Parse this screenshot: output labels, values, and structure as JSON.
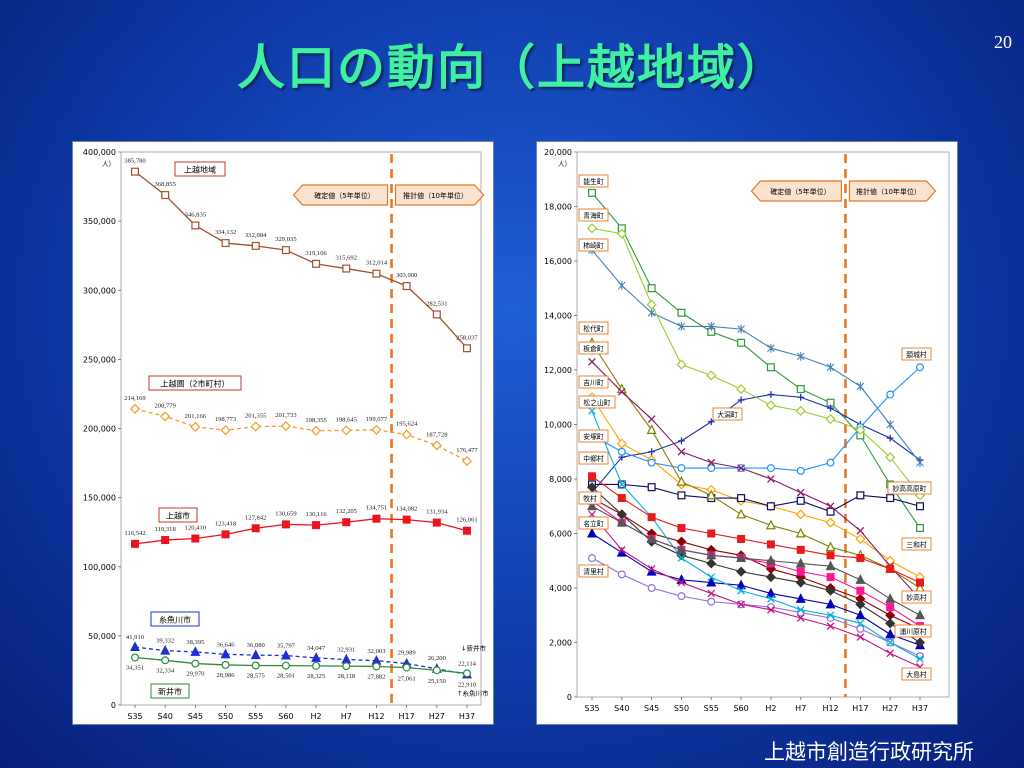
{
  "slide": {
    "title": "人口の動向（上越地域）",
    "page_number": "20",
    "footer": "上越市創造行政研究所"
  },
  "colors": {
    "background": "#0f3aa8",
    "title": "#3ef0a0",
    "divider": "#e87722",
    "arrow_fill": "#fbe3cf",
    "arrow_stroke": "#e87722"
  },
  "chart_data": [
    {
      "type": "line",
      "categories": [
        "S35",
        "S40",
        "S45",
        "S50",
        "S55",
        "S60",
        "H2",
        "H7",
        "H12",
        "H17",
        "H27",
        "H37"
      ],
      "ylim": [
        0,
        400000
      ],
      "yticks": [
        "0",
        "50,000",
        "100,000",
        "150,000",
        "200,000",
        "250,000",
        "300,000",
        "350,000",
        "400,000"
      ],
      "unit": "人",
      "divider_after": "H12",
      "annotations": {
        "actual": "確定値（5年単位）",
        "forecast": "推計値（10年単位）"
      },
      "series": [
        {
          "name": "上越地域",
          "color": "#a0522d",
          "marker": "square-open",
          "dash": false,
          "values": [
            385780,
            368855,
            346835,
            334132,
            332084,
            329035,
            319106,
            315692,
            312014,
            303000,
            282531,
            258037
          ],
          "labels": [
            "385,780",
            "368,855",
            "346,835",
            "334,132",
            "332,084",
            "329,035",
            "319,106",
            "315,692",
            "312,014",
            "303,000",
            "282,531",
            "258,037"
          ]
        },
        {
          "name": "上越圏（2市町村）",
          "color": "#f29a2e",
          "marker": "diamond-open",
          "dash": true,
          "values": [
            214169,
            208779,
            201166,
            198773,
            201355,
            201733,
            198355,
            198645,
            199077,
            195624,
            187728,
            176477
          ],
          "labels": [
            "214,169",
            "208,779",
            "201,166",
            "198,773",
            "201,355",
            "201,733",
            "198,355",
            "198,645",
            "199,077",
            "195,624",
            "187,728",
            "176,477"
          ]
        },
        {
          "name": "上越市",
          "color": "#e8141e",
          "marker": "square-filled",
          "dash": false,
          "values": [
            116542,
            119318,
            120410,
            123418,
            127842,
            130659,
            130116,
            132205,
            134751,
            134082,
            131934,
            126061
          ],
          "labels": [
            "116,542",
            "119,318",
            "120,410",
            "123,418",
            "127,842",
            "130,659",
            "130,116",
            "132,205",
            "134,751",
            "134,082",
            "131,934",
            "126,061"
          ]
        },
        {
          "name": "糸魚川市",
          "color": "#1a2fd4",
          "marker": "triangle-filled",
          "dash": true,
          "values": [
            41910,
            39332,
            38395,
            36646,
            36080,
            35797,
            34047,
            32931,
            32003,
            29989,
            26200,
            22114
          ],
          "labels": [
            "41,910",
            "39,332",
            "38,395",
            "36,646",
            "36,080",
            "35,797",
            "34,047",
            "32,931",
            "32,003",
            "29,989",
            "26,200",
            "22,114"
          ]
        },
        {
          "name": "新井市",
          "color": "#2e8b3a",
          "marker": "circle-open",
          "dash": false,
          "values": [
            34351,
            32334,
            29970,
            28986,
            28575,
            28501,
            28325,
            28118,
            27882,
            27061,
            25150,
            22910
          ],
          "labels": [
            "34,351",
            "32,334",
            "29,970",
            "28,986",
            "28,575",
            "28,501",
            "28,325",
            "28,118",
            "27,882",
            "27,061",
            "25,150",
            "22,910"
          ]
        }
      ],
      "end_notes": {
        "arai": "↓新井市",
        "itoigawa": "↑糸魚川市"
      }
    },
    {
      "type": "line",
      "categories": [
        "S35",
        "S40",
        "S45",
        "S50",
        "S55",
        "S60",
        "H2",
        "H7",
        "H12",
        "H17",
        "H27",
        "H37"
      ],
      "ylim": [
        0,
        20000
      ],
      "yticks": [
        "0",
        "2,000",
        "4,000",
        "6,000",
        "8,000",
        "10,000",
        "12,000",
        "14,000",
        "16,000",
        "18,000",
        "20,000"
      ],
      "unit": "人",
      "divider_after": "H12",
      "annotations": {
        "actual": "確定値（5年単位）",
        "forecast": "推計値（10年単位）"
      },
      "series": [
        {
          "name": "能生町",
          "color": "#2e9a3a",
          "marker": "square-open",
          "values": [
            18500,
            17200,
            15000,
            14100,
            13400,
            13000,
            12100,
            11300,
            10800,
            9600,
            7800,
            6200
          ]
        },
        {
          "name": "吉川町",
          "color": "#ffa500",
          "marker": "diamond-open",
          "values": [
            11000,
            9300,
            8700,
            7800,
            7600,
            7200,
            7000,
            6700,
            6400,
            5800,
            5000,
            4400
          ]
        },
        {
          "name": "大潟町",
          "color": "#1a2fb0",
          "marker": "plus",
          "values": [
            7500,
            8800,
            9000,
            9400,
            10100,
            10900,
            11100,
            11000,
            10600,
            10000,
            9500,
            8700
          ]
        },
        {
          "name": "頚城村",
          "color": "#1e90ff",
          "marker": "circle-open",
          "values": [
            9600,
            9000,
            8600,
            8400,
            8400,
            8400,
            8400,
            8300,
            8600,
            9900,
            11100,
            12100
          ]
        },
        {
          "name": "牧村",
          "color": "#0a0a60",
          "marker": "square-open",
          "values": [
            7800,
            7800,
            7700,
            7400,
            7300,
            7300,
            7000,
            7200,
            6800,
            7400,
            7300,
            7000
          ]
        },
        {
          "name": "柿崎町",
          "color": "#4682b4",
          "marker": "star",
          "values": [
            16400,
            15100,
            14100,
            13600,
            13600,
            13500,
            12800,
            12500,
            12100,
            11400,
            10000,
            8600
          ]
        },
        {
          "name": "名立町",
          "color": "#0000b8",
          "marker": "triangle-filled",
          "values": [
            6000,
            5300,
            4600,
            4300,
            4200,
            4100,
            3800,
            3600,
            3400,
            3000,
            2300,
            1900
          ]
        },
        {
          "name": "清里村",
          "color": "#9370db",
          "marker": "circle-open",
          "values": [
            5100,
            4500,
            4000,
            3700,
            3500,
            3400,
            3300,
            3100,
            2900,
            2500,
            2000,
            1500
          ]
        },
        {
          "name": "板倉町",
          "color": "#808000",
          "marker": "triangle-open",
          "values": [
            13000,
            11300,
            9800,
            7900,
            7400,
            6700,
            6300,
            6000,
            5500,
            5200,
            4700,
            4000
          ]
        },
        {
          "name": "中郷村",
          "color": "#8b0000",
          "marker": "diamond-filled",
          "values": [
            7300,
            6700,
            6000,
            5700,
            5400,
            5200,
            4700,
            4400,
            4000,
            3600,
            3000,
            2500
          ]
        },
        {
          "name": "浦川原村",
          "color": "#333333",
          "marker": "diamond-filled",
          "values": [
            7700,
            6700,
            5700,
            5200,
            4900,
            4600,
            4400,
            4200,
            3900,
            3400,
            2700,
            2000
          ]
        },
        {
          "name": "大島村",
          "color": "#c71585",
          "marker": "x",
          "values": [
            6700,
            5400,
            4700,
            4200,
            3800,
            3400,
            3200,
            2900,
            2600,
            2200,
            1600,
            1100
          ]
        },
        {
          "name": "安塚町",
          "color": "#00b4d8",
          "marker": "x",
          "values": [
            10500,
            7800,
            6600,
            5100,
            4400,
            3900,
            3600,
            3200,
            3000,
            2700,
            2000,
            1400
          ]
        },
        {
          "name": "松之山町",
          "color": "#9acd32",
          "marker": "diamond-open",
          "values": [
            17200,
            17000,
            14400,
            12200,
            11800,
            11300,
            10700,
            10500,
            10200,
            9800,
            8800,
            7400
          ]
        },
        {
          "name": "松代町",
          "color": "#8b1a6b",
          "marker": "x",
          "values": [
            12300,
            11200,
            10200,
            9000,
            8600,
            8400,
            8000,
            7500,
            7000,
            6100,
            4800,
            3600
          ]
        },
        {
          "name": "三和村",
          "color": "#ff1493",
          "marker": "square-filled",
          "values": [
            7200,
            6400,
            5800,
            5400,
            5200,
            5100,
            4900,
            4600,
            4400,
            3900,
            3300,
            2600
          ]
        },
        {
          "name": "妙高高原町",
          "color": "#e61c1c",
          "marker": "square-filled",
          "values": [
            8100,
            7300,
            6600,
            6200,
            6000,
            5800,
            5600,
            5400,
            5200,
            5100,
            4700,
            4200
          ]
        },
        {
          "name": "妙高村",
          "color": "#555555",
          "marker": "triangle-filled",
          "values": [
            7000,
            6400,
            5800,
            5400,
            5200,
            5100,
            5000,
            4900,
            4800,
            4300,
            3600,
            3000
          ]
        }
      ]
    }
  ]
}
